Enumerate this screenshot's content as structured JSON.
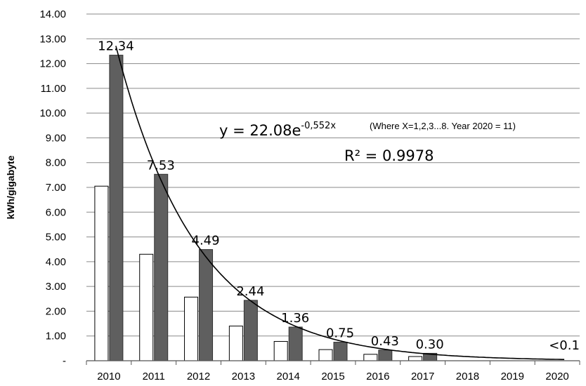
{
  "chart_data": {
    "type": "bar",
    "xlabel": "",
    "ylabel": "kWh/gigabyte",
    "ylim": [
      0,
      14
    ],
    "ytick_labels": [
      "-",
      "1.00",
      "2.00",
      "3.00",
      "4.00",
      "5.00",
      "6.00",
      "7.00",
      "8.00",
      "9.00",
      "10.00",
      "11.00",
      "12.00",
      "13.00",
      "14.00"
    ],
    "grid": true,
    "categories": [
      "2010",
      "2011",
      "2012",
      "2013",
      "2014",
      "2015",
      "2016",
      "2017",
      "2018",
      "2019",
      "2020"
    ],
    "series": [
      {
        "color": "#ffffff",
        "values": [
          7.05,
          4.3,
          2.57,
          1.4,
          0.78,
          0.45,
          0.26,
          0.17,
          null,
          null,
          null
        ]
      },
      {
        "color": "#5f5f5f",
        "values": [
          12.34,
          7.53,
          4.49,
          2.44,
          1.36,
          0.75,
          0.43,
          0.3,
          null,
          null,
          null
        ]
      }
    ],
    "data_labels": [
      "12.34",
      "7.53",
      "4.49",
      "2.44",
      "1.36",
      "0.75",
      "0.43",
      "0.30",
      "",
      "",
      "<0.1"
    ],
    "trendline": {
      "type": "exponential",
      "a": 22.08,
      "b": -0.552,
      "x_start": 1,
      "x_end": 11
    },
    "annotations": {
      "equation_main": "y = 22.08e",
      "equation_exp": "-0,552x",
      "equation_note": "(Where X=1,2,3...8. Year 2020 = 11)",
      "r_squared": "R² = 0.9978"
    }
  }
}
